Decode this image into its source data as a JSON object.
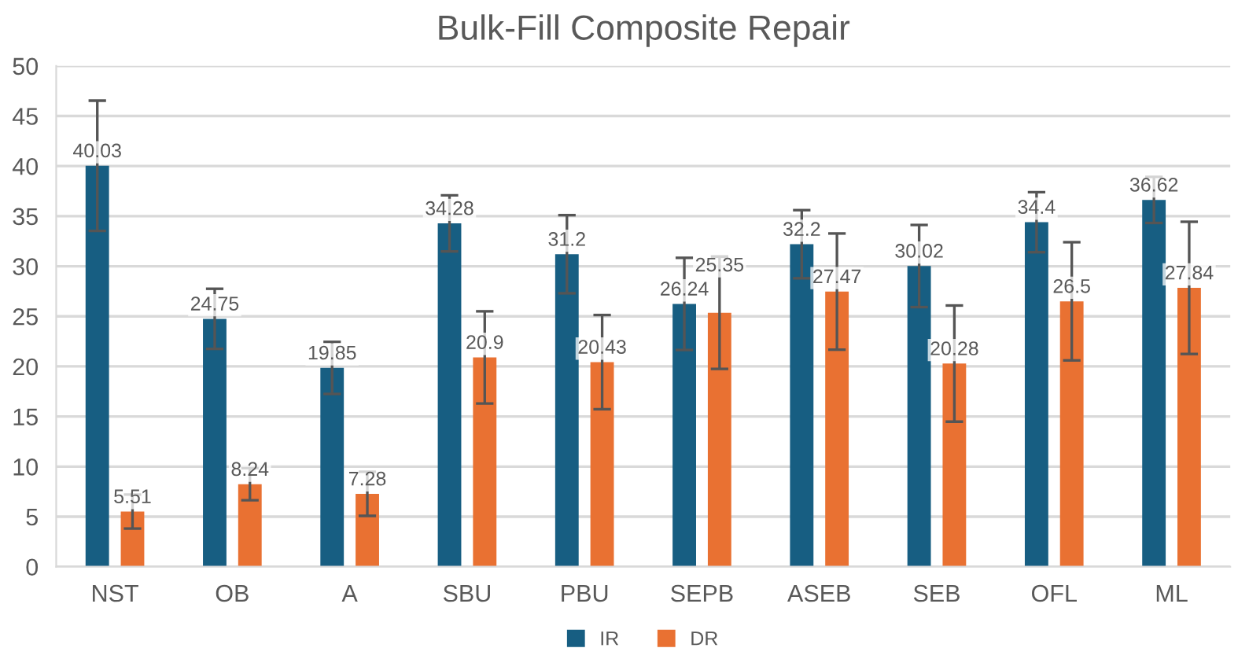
{
  "chart_data": {
    "type": "bar",
    "title": "Bulk-Fill Composite Repair",
    "categories": [
      "NST",
      "OB",
      "A",
      "SBU",
      "PBU",
      "SEPB",
      "ASEB",
      "SEB",
      "OFL",
      "ML"
    ],
    "series": [
      {
        "name": "IR",
        "color": "#175e82",
        "values": [
          40.03,
          24.75,
          19.85,
          34.28,
          31.2,
          26.24,
          32.2,
          30.02,
          34.4,
          36.62
        ],
        "errors": [
          6.5,
          3.0,
          2.6,
          2.8,
          3.9,
          4.6,
          3.4,
          4.1,
          3.0,
          2.3
        ]
      },
      {
        "name": "DR",
        "color": "#e97132",
        "values": [
          5.51,
          8.24,
          7.28,
          20.9,
          20.43,
          25.35,
          27.47,
          20.28,
          26.5,
          27.84
        ],
        "errors": [
          1.7,
          1.6,
          2.2,
          4.6,
          4.7,
          5.6,
          5.8,
          5.8,
          5.9,
          6.6
        ]
      }
    ],
    "ylim": [
      0,
      50
    ],
    "yticks": [
      0,
      5,
      10,
      15,
      20,
      25,
      30,
      35,
      40,
      45,
      50
    ],
    "grid": "y",
    "legend": "bottom",
    "data_labels": true
  }
}
